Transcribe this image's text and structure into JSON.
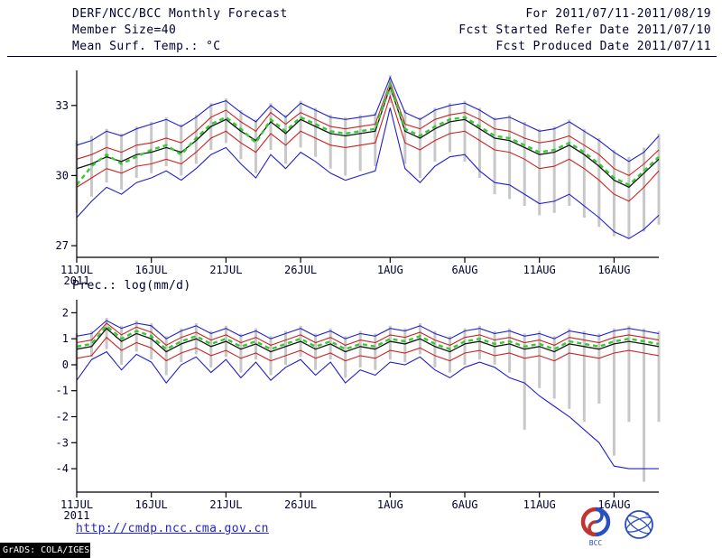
{
  "header": {
    "title": "DERF/NCC/BCC Monthly Forecast",
    "member_size": "Member Size=40",
    "for_range": "For 2011/07/11-2011/08/19",
    "fcst_started": "Fcst Started Refer Date 2011/07/10",
    "fcst_produced": "Fcst Produced Date 2011/07/11"
  },
  "footer": {
    "url": "http://cmdp.ncc.cma.gov.cn",
    "grads_credit": "GrADS: COLA/IGES",
    "bcc_logo_label": "BCC"
  },
  "colors": {
    "ink": "#000030",
    "axis": "#000000",
    "blue_line": "#2020cc",
    "red_line": "#cc2222",
    "mean_line": "#151515",
    "median_dash": "#33cc33",
    "spread_bar": "#c8c8c8",
    "link": "#2222cc"
  },
  "chart_data": [
    {
      "type": "line",
      "name": "temperature",
      "title": "Mean Surf. Temp.: °C",
      "x_year_label": "2011",
      "x_tick_labels": [
        "11JUL",
        "16JUL",
        "21JUL",
        "26JUL",
        "1AUG",
        "6AUG",
        "11AUG",
        "16AUG"
      ],
      "x_tick_indices": [
        0,
        5,
        10,
        15,
        21,
        26,
        31,
        36
      ],
      "ylim": [
        26.5,
        34.5
      ],
      "yticks": [
        33,
        30,
        27
      ],
      "bars": {
        "color": "#c8c8c8",
        "top": [
          31.5,
          31.7,
          32.0,
          31.8,
          32.1,
          32.3,
          32.5,
          32.2,
          32.6,
          33.1,
          33.3,
          32.8,
          32.4,
          33.1,
          32.6,
          33.2,
          32.9,
          32.6,
          32.5,
          32.6,
          32.7,
          34.3,
          32.8,
          32.5,
          32.9,
          33.1,
          33.2,
          32.9,
          32.5,
          32.6,
          32.3,
          32.0,
          32.1,
          32.4,
          32.0,
          31.6,
          31.1,
          30.8,
          31.2,
          31.8
        ],
        "bottom": [
          28.4,
          29.1,
          29.7,
          29.4,
          29.9,
          30.1,
          30.4,
          30.0,
          30.5,
          31.1,
          31.4,
          30.7,
          30.1,
          31.1,
          30.5,
          31.2,
          30.8,
          30.3,
          30.0,
          30.2,
          30.4,
          33.1,
          30.5,
          29.9,
          30.6,
          31.0,
          30.6,
          29.9,
          29.2,
          29.0,
          28.7,
          28.3,
          28.4,
          28.7,
          28.2,
          27.8,
          27.4,
          27.3,
          27.6,
          27.9
        ]
      },
      "series": [
        {
          "name": "ensemble-max",
          "color": "#2020cc",
          "width": 1.1,
          "values": [
            31.3,
            31.5,
            31.9,
            31.7,
            32.0,
            32.2,
            32.4,
            32.1,
            32.5,
            33.0,
            33.2,
            32.7,
            32.3,
            33.0,
            32.5,
            33.1,
            32.8,
            32.5,
            32.4,
            32.5,
            32.6,
            34.2,
            32.7,
            32.4,
            32.8,
            33.0,
            33.1,
            32.8,
            32.4,
            32.5,
            32.2,
            31.9,
            32.0,
            32.3,
            31.9,
            31.5,
            31.0,
            30.6,
            31.0,
            31.7
          ]
        },
        {
          "name": "ensemble-min",
          "color": "#2020cc",
          "width": 1.1,
          "values": [
            28.2,
            28.9,
            29.5,
            29.2,
            29.7,
            29.9,
            30.2,
            29.8,
            30.3,
            30.9,
            31.2,
            30.5,
            29.9,
            30.9,
            30.3,
            31.0,
            30.6,
            30.1,
            29.8,
            30.0,
            30.2,
            32.9,
            30.3,
            29.7,
            30.4,
            30.8,
            30.9,
            30.2,
            29.7,
            29.6,
            29.2,
            28.8,
            28.9,
            29.2,
            28.7,
            28.2,
            27.6,
            27.3,
            27.7,
            28.3
          ]
        },
        {
          "name": "upper-quartile",
          "color": "#cc2222",
          "width": 1.1,
          "values": [
            30.7,
            30.9,
            31.2,
            31.0,
            31.3,
            31.4,
            31.6,
            31.4,
            31.9,
            32.5,
            32.8,
            32.3,
            31.9,
            32.7,
            32.2,
            32.7,
            32.4,
            32.1,
            32.0,
            32.1,
            32.2,
            34.0,
            32.2,
            32.0,
            32.4,
            32.6,
            32.7,
            32.4,
            32.0,
            31.9,
            31.6,
            31.4,
            31.5,
            31.7,
            31.3,
            30.9,
            30.3,
            30.0,
            30.5,
            31.1
          ]
        },
        {
          "name": "lower-quartile",
          "color": "#cc2222",
          "width": 1.1,
          "values": [
            29.5,
            29.9,
            30.3,
            30.1,
            30.4,
            30.5,
            30.7,
            30.5,
            31.0,
            31.6,
            31.9,
            31.4,
            31.0,
            31.8,
            31.3,
            31.9,
            31.6,
            31.3,
            31.2,
            31.3,
            31.4,
            33.4,
            31.4,
            31.1,
            31.5,
            31.8,
            31.9,
            31.5,
            31.1,
            31.0,
            30.7,
            30.3,
            30.4,
            30.7,
            30.3,
            29.8,
            29.2,
            28.9,
            29.5,
            30.2
          ]
        },
        {
          "name": "ensemble-mean",
          "color": "#151515",
          "width": 1.3,
          "values": [
            30.3,
            30.5,
            30.8,
            30.6,
            30.9,
            31.0,
            31.2,
            31.0,
            31.5,
            32.1,
            32.4,
            31.9,
            31.5,
            32.3,
            31.8,
            32.4,
            32.1,
            31.8,
            31.7,
            31.8,
            31.9,
            33.8,
            31.9,
            31.6,
            32.0,
            32.3,
            32.4,
            32.0,
            31.6,
            31.5,
            31.2,
            30.9,
            31.0,
            31.3,
            30.9,
            30.4,
            29.8,
            29.5,
            30.1,
            30.7
          ]
        },
        {
          "name": "ensemble-median",
          "color": "#33cc33",
          "width": 2.4,
          "dash": "5,4",
          "values": [
            29.6,
            30.4,
            30.9,
            30.5,
            30.8,
            31.1,
            31.3,
            30.9,
            31.6,
            32.2,
            32.5,
            32.0,
            31.4,
            32.4,
            31.9,
            32.5,
            32.2,
            31.9,
            31.8,
            31.9,
            32.0,
            33.9,
            32.0,
            31.7,
            32.1,
            32.4,
            32.5,
            32.1,
            31.7,
            31.6,
            31.3,
            31.0,
            31.1,
            31.4,
            31.0,
            30.5,
            29.9,
            29.6,
            30.2,
            30.8
          ]
        }
      ]
    },
    {
      "type": "line",
      "name": "precipitation",
      "title": "Prec.: log(mm/d)",
      "x_year_label": "2011",
      "x_tick_labels": [
        "11JUL",
        "16JUL",
        "21JUL",
        "26JUL",
        "1AUG",
        "6AUG",
        "11AUG",
        "16AUG"
      ],
      "x_tick_indices": [
        0,
        5,
        10,
        15,
        21,
        26,
        31,
        36
      ],
      "ylim": [
        -4.9,
        2.5
      ],
      "yticks": [
        2,
        1,
        0,
        -1,
        -2,
        -3,
        -4
      ],
      "bars": {
        "color": "#c8c8c8",
        "top": [
          1.2,
          1.3,
          1.8,
          1.5,
          1.7,
          1.6,
          1.1,
          1.4,
          1.6,
          1.3,
          1.5,
          1.2,
          1.4,
          1.1,
          1.3,
          1.5,
          1.2,
          1.4,
          1.1,
          1.3,
          1.2,
          1.5,
          1.4,
          1.6,
          1.3,
          1.1,
          1.4,
          1.5,
          1.3,
          1.4,
          1.2,
          1.3,
          1.1,
          1.4,
          1.3,
          1.2,
          1.4,
          1.5,
          1.4,
          1.3
        ],
        "bottom": [
          -0.2,
          0.3,
          0.6,
          0.0,
          0.5,
          0.2,
          -0.4,
          0.1,
          0.4,
          -0.1,
          0.3,
          -0.3,
          0.2,
          -0.4,
          0.0,
          0.3,
          -0.2,
          0.2,
          -0.5,
          -0.1,
          -0.2,
          0.2,
          0.1,
          0.4,
          -0.1,
          -0.3,
          0.0,
          0.2,
          0.0,
          -0.3,
          -2.5,
          -0.9,
          -1.3,
          -1.7,
          -2.2,
          -1.5,
          -3.5,
          -2.2,
          -4.5,
          -2.2
        ]
      },
      "series": [
        {
          "name": "ensemble-max",
          "color": "#2020cc",
          "width": 1.1,
          "values": [
            1.1,
            1.2,
            1.7,
            1.4,
            1.6,
            1.5,
            1.0,
            1.3,
            1.5,
            1.2,
            1.4,
            1.1,
            1.3,
            1.0,
            1.2,
            1.4,
            1.1,
            1.3,
            1.0,
            1.2,
            1.1,
            1.4,
            1.3,
            1.5,
            1.2,
            1.0,
            1.3,
            1.4,
            1.2,
            1.3,
            1.1,
            1.2,
            1.0,
            1.3,
            1.2,
            1.1,
            1.3,
            1.4,
            1.3,
            1.2
          ]
        },
        {
          "name": "ensemble-min",
          "color": "#2020cc",
          "width": 1.1,
          "values": [
            -0.6,
            0.2,
            0.5,
            -0.2,
            0.4,
            0.1,
            -0.7,
            0.0,
            0.3,
            -0.3,
            0.2,
            -0.5,
            0.1,
            -0.6,
            -0.1,
            0.2,
            -0.4,
            0.1,
            -0.7,
            -0.2,
            -0.4,
            0.1,
            0.0,
            0.3,
            -0.2,
            -0.5,
            -0.1,
            0.1,
            -0.1,
            -0.5,
            -0.7,
            -1.2,
            -1.6,
            -2.0,
            -2.5,
            -3.0,
            -3.9,
            -4.0,
            -4.0,
            -4.0
          ]
        },
        {
          "name": "upper-quartile",
          "color": "#cc2222",
          "width": 1.1,
          "values": [
            0.85,
            0.95,
            1.6,
            1.15,
            1.45,
            1.25,
            0.75,
            1.05,
            1.25,
            0.95,
            1.15,
            0.85,
            1.05,
            0.75,
            0.95,
            1.15,
            0.85,
            1.05,
            0.75,
            0.95,
            0.85,
            1.15,
            1.05,
            1.25,
            0.95,
            0.75,
            1.05,
            1.15,
            0.95,
            1.05,
            0.85,
            0.95,
            0.75,
            1.05,
            0.95,
            0.85,
            1.05,
            1.15,
            1.05,
            0.95
          ]
        },
        {
          "name": "lower-quartile",
          "color": "#cc2222",
          "width": 1.1,
          "values": [
            0.25,
            0.35,
            1.05,
            0.55,
            0.85,
            0.65,
            0.15,
            0.45,
            0.65,
            0.35,
            0.55,
            0.25,
            0.45,
            0.15,
            0.35,
            0.55,
            0.25,
            0.45,
            0.15,
            0.35,
            0.25,
            0.55,
            0.45,
            0.65,
            0.35,
            0.15,
            0.45,
            0.55,
            0.35,
            0.45,
            0.25,
            0.35,
            0.15,
            0.45,
            0.35,
            0.25,
            0.45,
            0.55,
            0.45,
            0.35
          ]
        },
        {
          "name": "ensemble-mean",
          "color": "#151515",
          "width": 1.3,
          "values": [
            0.6,
            0.7,
            1.4,
            0.9,
            1.2,
            1.0,
            0.5,
            0.8,
            1.0,
            0.7,
            0.9,
            0.6,
            0.8,
            0.5,
            0.7,
            0.9,
            0.6,
            0.8,
            0.5,
            0.7,
            0.6,
            0.9,
            0.8,
            1.0,
            0.7,
            0.5,
            0.8,
            0.9,
            0.7,
            0.8,
            0.6,
            0.7,
            0.5,
            0.8,
            0.7,
            0.6,
            0.8,
            0.9,
            0.8,
            0.7
          ]
        },
        {
          "name": "ensemble-median",
          "color": "#33cc33",
          "width": 2.4,
          "dash": "5,4",
          "values": [
            0.7,
            0.8,
            1.5,
            1.0,
            1.3,
            1.1,
            0.6,
            0.9,
            1.1,
            0.8,
            1.0,
            0.7,
            0.9,
            0.6,
            0.8,
            1.0,
            0.7,
            0.9,
            0.6,
            0.8,
            0.7,
            1.0,
            0.9,
            1.1,
            0.8,
            0.6,
            0.9,
            1.0,
            0.8,
            0.9,
            0.7,
            0.8,
            0.6,
            0.9,
            0.8,
            0.7,
            0.9,
            1.0,
            0.9,
            0.8
          ]
        }
      ]
    }
  ]
}
